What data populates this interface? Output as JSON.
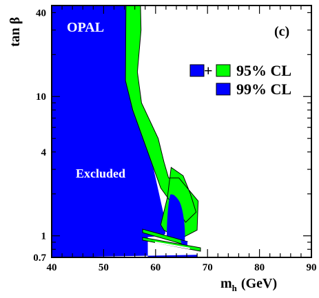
{
  "chart_data": {
    "type": "area",
    "xlabel": "m",
    "xlabel_sub": "h",
    "xlabel_unit": "(GeV)",
    "ylabel": "tan β",
    "xlim": [
      40,
      90
    ],
    "ylim": [
      0.7,
      45
    ],
    "yscale": "log",
    "x_ticks": [
      40,
      50,
      60,
      70,
      80,
      90
    ],
    "y_ticks": [
      0.7,
      1,
      4,
      10,
      40
    ],
    "y_tick_labels": [
      "0.7",
      "1",
      "4",
      "10",
      "40"
    ],
    "annotations": {
      "experiment": "OPAL",
      "panel": "(c)",
      "region": "Excluded"
    },
    "legend": [
      {
        "plus_symbol": "+",
        "label": "95% CL"
      },
      {
        "label": "99% CL"
      }
    ],
    "colors": {
      "blue": "#0000ff",
      "green": "#00ff00",
      "outline": "#000000"
    },
    "series": [
      {
        "name": "99% CL",
        "x": [
          40,
          40,
          54.6,
          54.6,
          54.7,
          55.5,
          57.8,
          60.0,
          61.6,
          61.9,
          61.4,
          58.5,
          58.5,
          68.0,
          68.0,
          40
        ],
        "y": [
          0.7,
          45,
          45,
          30,
          13,
          8.2,
          6,
          2.6,
          1.4,
          1.04,
          1.0,
          0.98,
          0.7,
          0.7,
          0.73,
          0.7
        ]
      },
      {
        "name": "95% CL",
        "x": [
          54.3,
          57.1,
          57.2,
          56.5,
          57.3,
          60.5,
          61.6,
          62.5,
          64.5,
          68.2,
          68.0,
          64.5,
          61.6,
          61.0,
          62.3,
          63.0,
          65.3,
          66.7,
          67.8,
          65.8,
          61.0,
          55.6,
          54.2
        ],
        "y": [
          45,
          45,
          30,
          15,
          9,
          5,
          3.4,
          2.6,
          2.6,
          1.78,
          1.1,
          0.94,
          1.1,
          1.2,
          1.9,
          3.1,
          2.7,
          2.0,
          1.48,
          1.25,
          2.2,
          8,
          13
        ]
      }
    ]
  }
}
